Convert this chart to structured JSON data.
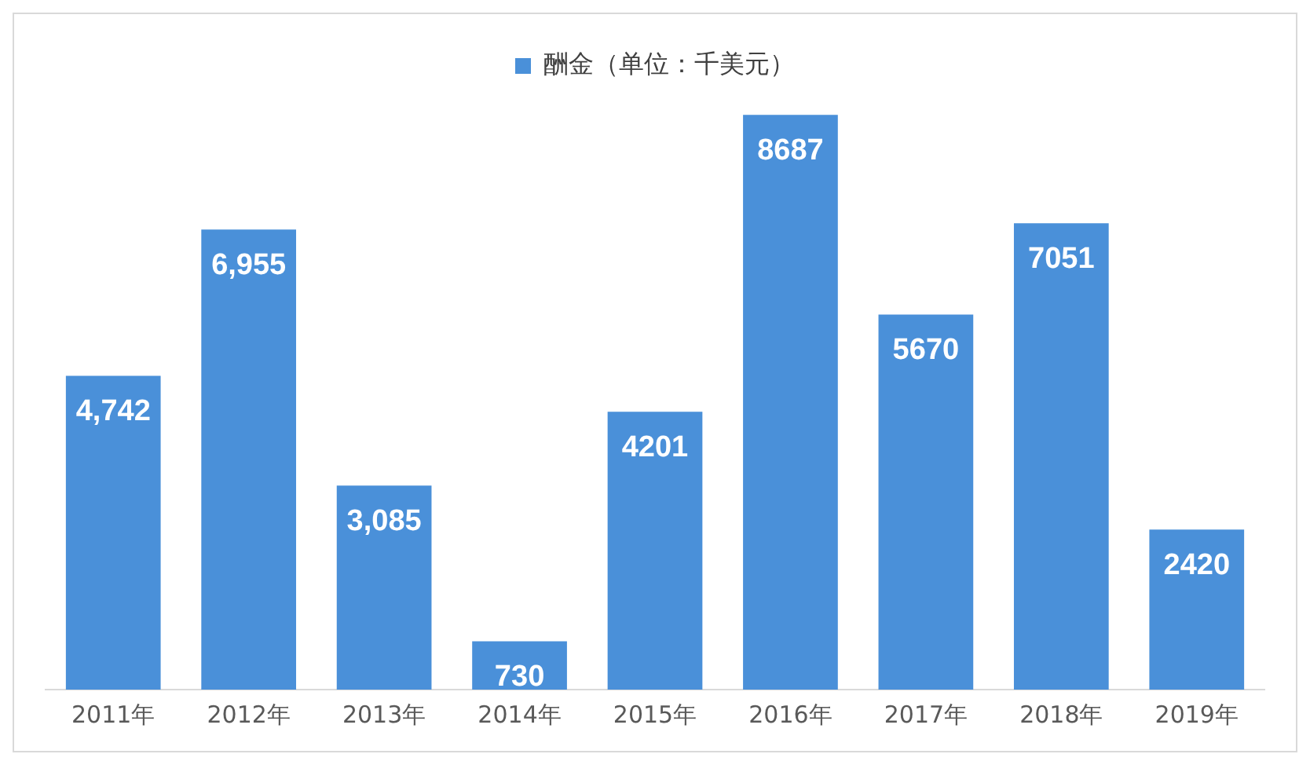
{
  "chart_data": {
    "type": "bar",
    "categories": [
      "2011年",
      "2012年",
      "2013年",
      "2014年",
      "2015年",
      "2016年",
      "2017年",
      "2018年",
      "2019年"
    ],
    "series": [
      {
        "name": "酬金（单位：千美元）",
        "color": "#4a90d9",
        "values": [
          4742,
          6955,
          3085,
          730,
          4201,
          8687,
          5670,
          7051,
          2420
        ],
        "value_labels": [
          "4,742",
          "6,955",
          "3,085",
          "730",
          "4201",
          "8687",
          "5670",
          "7051",
          "2420"
        ]
      }
    ],
    "legend": "top",
    "grid": false
  }
}
